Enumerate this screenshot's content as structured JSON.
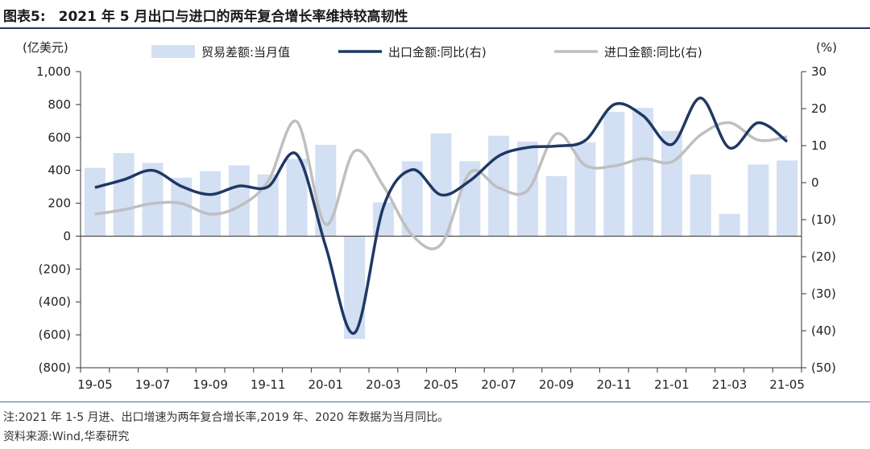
{
  "figure": {
    "label": "图表5:",
    "title": "2021 年 5 月出口与进口的两年复合增长率维持较高韧性",
    "note": "注:2021 年 1-5 月进、出口增速为两年复合增长率,2019 年、2020 年数据为当月同比。",
    "source": "资料来源:Wind,华泰研究"
  },
  "colors": {
    "bar": "#d3dff2",
    "export_line": "#1f3864",
    "import_line": "#bfbfbf",
    "rule": "#1f3864"
  },
  "chart_data": {
    "type": "bar",
    "categories": [
      "19-05",
      "19-06",
      "19-07",
      "19-08",
      "19-09",
      "19-10",
      "19-11",
      "19-12",
      "20-01",
      "20-02",
      "20-03",
      "20-04",
      "20-05",
      "20-06",
      "20-07",
      "20-08",
      "20-09",
      "20-10",
      "20-11",
      "20-12",
      "21-01",
      "21-02",
      "21-03",
      "21-04",
      "21-05"
    ],
    "x_tick_labels": [
      "19-05",
      "19-07",
      "19-09",
      "19-11",
      "20-01",
      "20-03",
      "20-05",
      "20-07",
      "20-09",
      "20-11",
      "21-01",
      "21-03",
      "21-05"
    ],
    "left_axis": {
      "unit_label": "(亿美元)",
      "ylim": [
        -800,
        1000
      ],
      "ticks": [
        1000,
        800,
        600,
        400,
        200,
        0,
        -200,
        -400,
        -600,
        -800
      ],
      "tick_labels": [
        "1,000",
        "800",
        "600",
        "400",
        "200",
        "0",
        "(200)",
        "(400)",
        "(600)",
        "(800)"
      ]
    },
    "right_axis": {
      "unit_label": "(%)",
      "ylim": [
        -50,
        30
      ],
      "ticks": [
        30,
        20,
        10,
        0,
        -10,
        -20,
        -30,
        -40,
        -50
      ],
      "tick_labels": [
        "30",
        "20",
        "10",
        "0",
        "(10)",
        "(20)",
        "(30)",
        "(40)",
        "(50)"
      ]
    },
    "series": [
      {
        "name": "贸易差额:当月值",
        "kind": "bar",
        "axis": "left",
        "values": [
          415,
          505,
          445,
          355,
          395,
          430,
          375,
          470,
          555,
          -625,
          205,
          455,
          625,
          455,
          610,
          575,
          365,
          570,
          755,
          780,
          640,
          375,
          135,
          435,
          460
        ]
      },
      {
        "name": "出口金额:同比(右)",
        "kind": "line",
        "axis": "right",
        "values": [
          -1.3,
          0.8,
          3.3,
          -1.0,
          -3.2,
          -0.9,
          -1.1,
          7.6,
          -17.2,
          -40.6,
          -6.6,
          3.5,
          -3.3,
          0.5,
          7.2,
          9.5,
          9.9,
          11.4,
          21.1,
          18.1,
          10.3,
          22.9,
          9.4,
          16.2,
          11.1
        ]
      },
      {
        "name": "进口金额:同比(右)",
        "kind": "line",
        "axis": "right",
        "values": [
          -8.5,
          -7.3,
          -5.6,
          -5.6,
          -8.5,
          -6.4,
          0.3,
          16.5,
          -11.3,
          8.5,
          -0.9,
          -14.2,
          -16.7,
          2.7,
          -1.4,
          -2.1,
          13.2,
          4.7,
          4.5,
          6.5,
          5.6,
          12.9,
          16.2,
          11.5,
          12.4
        ]
      }
    ],
    "legend_position": "top",
    "grid": false
  }
}
